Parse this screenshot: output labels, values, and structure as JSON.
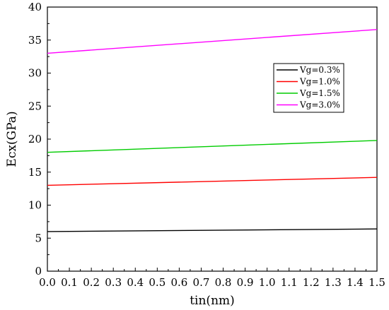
{
  "chart_data": {
    "type": "line",
    "xlabel": "tin(nm)",
    "ylabel": "Ecx(GPa)",
    "xlim": [
      0.0,
      1.5
    ],
    "ylim": [
      0,
      40
    ],
    "x_ticks": [
      "0.0",
      "0.1",
      "0.2",
      "0.3",
      "0.4",
      "0.5",
      "0.6",
      "0.7",
      "0.8",
      "0.9",
      "1.0",
      "1.1",
      "1.2",
      "1.3",
      "1.4",
      "1.5"
    ],
    "y_ticks": [
      "0",
      "5",
      "10",
      "15",
      "20",
      "25",
      "30",
      "35",
      "40"
    ],
    "grid": false,
    "legend_position": "upper-right",
    "series": [
      {
        "name": "Vg=0.3%",
        "color": "#000000",
        "x": [
          0.0,
          1.5
        ],
        "y": [
          6.0,
          6.4
        ]
      },
      {
        "name": "Vg=1.0%",
        "color": "#ff0000",
        "x": [
          0.0,
          1.5
        ],
        "y": [
          13.0,
          14.2
        ]
      },
      {
        "name": "Vg=1.5%",
        "color": "#00cc00",
        "x": [
          0.0,
          1.5
        ],
        "y": [
          18.0,
          19.8
        ]
      },
      {
        "name": "Vg=3.0%",
        "color": "#ff00ff",
        "x": [
          0.0,
          1.5
        ],
        "y": [
          33.0,
          36.6
        ]
      }
    ]
  }
}
